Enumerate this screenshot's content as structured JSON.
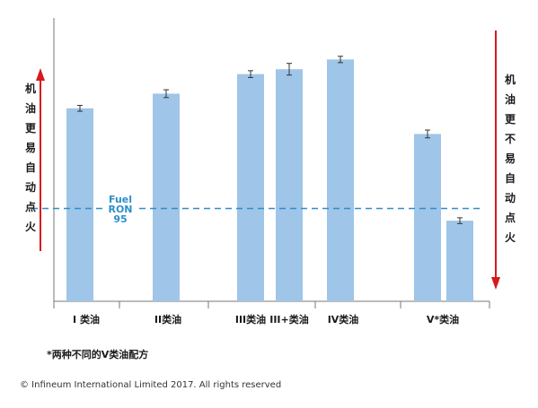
{
  "chart_data": {
    "type": "bar",
    "groups": [
      {
        "label": "I 类油",
        "bars": [
          {
            "value": 79,
            "err": 1.2
          }
        ]
      },
      {
        "label": "II类油",
        "bars": [
          {
            "value": 85,
            "err": 1.6
          }
        ]
      },
      {
        "label": "III类油",
        "bars": [
          {
            "value": 93,
            "err": 1.4
          }
        ]
      },
      {
        "label": "III+类油",
        "bars": [
          {
            "value": 95,
            "err": 2.4
          }
        ]
      },
      {
        "label": "IV类油",
        "bars": [
          {
            "value": 99,
            "err": 1.3
          }
        ]
      },
      {
        "label": "V*类油",
        "bars": [
          {
            "value": 68.5,
            "err": 1.6
          },
          {
            "value": 33,
            "err": 1.2
          }
        ]
      }
    ],
    "ylim": [
      0,
      116
    ],
    "reference_line": {
      "value": 38,
      "label_lines": [
        "Fuel",
        "RON",
        "95"
      ],
      "color": "#2e8ecb"
    },
    "left_label": "机\n油\n更\n易\n自\n动\n点\n火",
    "right_label": "机\n油\n更\n不\n易\n自\n动\n点\n火",
    "bar_color": "#9fc5e8",
    "arrow_color": "#d7191c",
    "grid": false
  },
  "footnote": "*两种不同的V类油配方",
  "copyright": "© Infineum International Limited 2017. All rights reserved"
}
